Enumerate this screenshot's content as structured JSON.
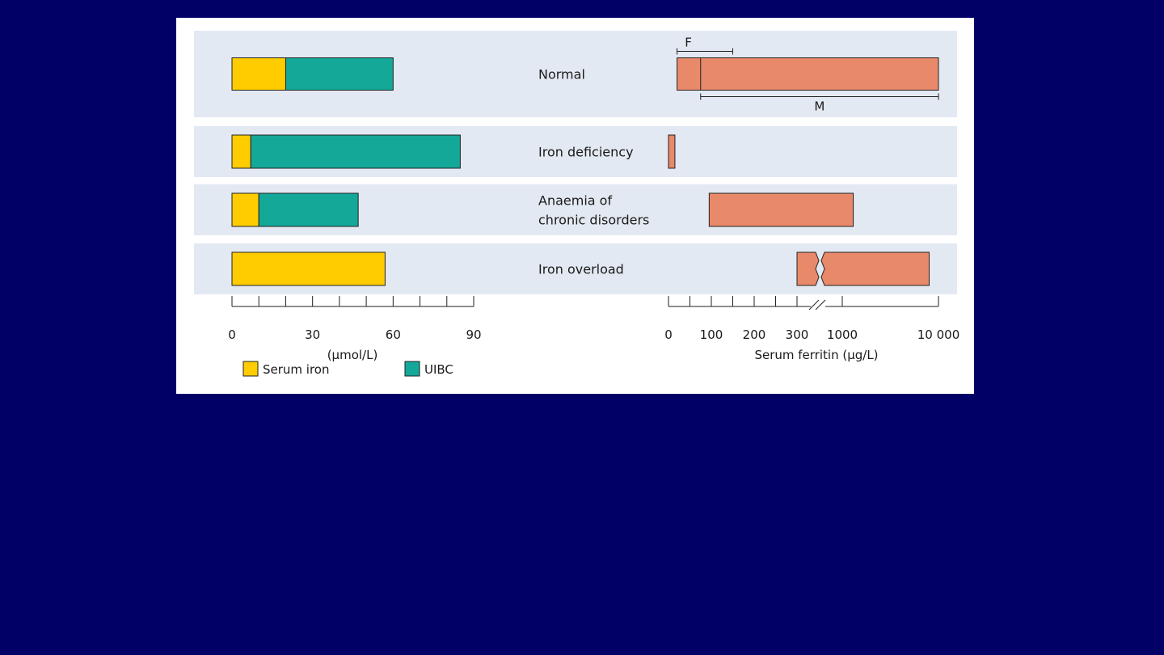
{
  "colors": {
    "background": "#000066",
    "panel": "#ffffff",
    "band": "#e3e9f2",
    "serum_iron": "#ffcc00",
    "uibc": "#14a899",
    "ferritin": "#e8896a"
  },
  "chart_data": {
    "type": "bar",
    "categories": [
      "Normal",
      "Iron deficiency",
      "Anaemia of\nchronic disorders",
      "Iron overload"
    ],
    "left_panel": {
      "stacked": true,
      "series": [
        {
          "name": "Serum iron",
          "values": [
            20,
            7,
            10,
            57
          ]
        },
        {
          "name": "UIBC",
          "values": [
            40,
            78,
            37,
            0
          ]
        }
      ],
      "xlabel": "(µmol/L)",
      "xlim": [
        0,
        90
      ],
      "ticks": [
        0,
        10,
        20,
        30,
        40,
        50,
        60,
        70,
        80,
        90
      ],
      "tick_labels": [
        {
          "value": 0,
          "label": "0"
        },
        {
          "value": 30,
          "label": "30"
        },
        {
          "value": 60,
          "label": "60"
        },
        {
          "value": 90,
          "label": "90"
        }
      ]
    },
    "right_panel": {
      "xlabel": "Serum ferritin (µg/L)",
      "axis_break": true,
      "ticks": [
        0,
        50,
        100,
        150,
        200,
        250,
        300,
        1000,
        10000
      ],
      "tick_labels": [
        {
          "value": 0,
          "label": "0"
        },
        {
          "value": 100,
          "label": "100"
        },
        {
          "value": 200,
          "label": "200"
        },
        {
          "value": 300,
          "label": "300"
        },
        {
          "value": 1000,
          "label": "1000"
        },
        {
          "value": 10000,
          "label": "10 000"
        }
      ],
      "ranges": [
        {
          "category": "Normal",
          "low": 20,
          "high": 10000,
          "marker": 75
        },
        {
          "category": "Iron deficiency",
          "low": 0,
          "high": 15
        },
        {
          "category": "Anaemia of\nchronic disorders",
          "low": 95,
          "high": 1300
        },
        {
          "category": "Iron overload",
          "low": 300,
          "high": 8000,
          "broken": true
        }
      ],
      "reference_ranges": [
        {
          "label": "F",
          "low": 20,
          "high": 150
        },
        {
          "label": "M",
          "low": 75,
          "high": 10000
        }
      ]
    },
    "legend": {
      "placement": "bottom-left",
      "items": [
        {
          "name": "Serum iron",
          "color": "#ffcc00"
        },
        {
          "name": "UIBC",
          "color": "#14a899"
        }
      ]
    }
  }
}
